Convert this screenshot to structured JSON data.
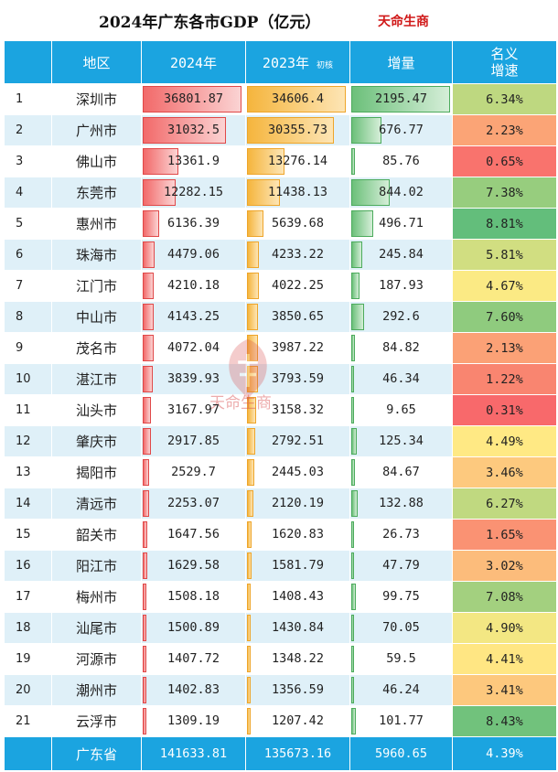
{
  "title": "2024年广东各市GDP（亿元）",
  "brand": "天命生商",
  "headers": {
    "region": "地区",
    "y2024": "2024年",
    "y2023": "2023年",
    "y2023_note": "初核",
    "increase": "增量",
    "growth_line1": "名义",
    "growth_line2": "增速"
  },
  "rows": [
    {
      "rank": "1",
      "city": "深圳市",
      "gdp2024": "36801.87",
      "gdp2023": "34606.4",
      "increase": "2195.47",
      "growth": "6.34%"
    },
    {
      "rank": "2",
      "city": "广州市",
      "gdp2024": "31032.5",
      "gdp2023": "30355.73",
      "increase": "676.77",
      "growth": "2.23%"
    },
    {
      "rank": "3",
      "city": "佛山市",
      "gdp2024": "13361.9",
      "gdp2023": "13276.14",
      "increase": "85.76",
      "growth": "0.65%"
    },
    {
      "rank": "4",
      "city": "东莞市",
      "gdp2024": "12282.15",
      "gdp2023": "11438.13",
      "increase": "844.02",
      "growth": "7.38%"
    },
    {
      "rank": "5",
      "city": "惠州市",
      "gdp2024": "6136.39",
      "gdp2023": "5639.68",
      "increase": "496.71",
      "growth": "8.81%"
    },
    {
      "rank": "6",
      "city": "珠海市",
      "gdp2024": "4479.06",
      "gdp2023": "4233.22",
      "increase": "245.84",
      "growth": "5.81%"
    },
    {
      "rank": "7",
      "city": "江门市",
      "gdp2024": "4210.18",
      "gdp2023": "4022.25",
      "increase": "187.93",
      "growth": "4.67%"
    },
    {
      "rank": "8",
      "city": "中山市",
      "gdp2024": "4143.25",
      "gdp2023": "3850.65",
      "increase": "292.6",
      "growth": "7.60%"
    },
    {
      "rank": "9",
      "city": "茂名市",
      "gdp2024": "4072.04",
      "gdp2023": "3987.22",
      "increase": "84.82",
      "growth": "2.13%"
    },
    {
      "rank": "10",
      "city": "湛江市",
      "gdp2024": "3839.93",
      "gdp2023": "3793.59",
      "increase": "46.34",
      "growth": "1.22%"
    },
    {
      "rank": "11",
      "city": "汕头市",
      "gdp2024": "3167.97",
      "gdp2023": "3158.32",
      "increase": "9.65",
      "growth": "0.31%"
    },
    {
      "rank": "12",
      "city": "肇庆市",
      "gdp2024": "2917.85",
      "gdp2023": "2792.51",
      "increase": "125.34",
      "growth": "4.49%"
    },
    {
      "rank": "13",
      "city": "揭阳市",
      "gdp2024": "2529.7",
      "gdp2023": "2445.03",
      "increase": "84.67",
      "growth": "3.46%"
    },
    {
      "rank": "14",
      "city": "清远市",
      "gdp2024": "2253.07",
      "gdp2023": "2120.19",
      "increase": "132.88",
      "growth": "6.27%"
    },
    {
      "rank": "15",
      "city": "韶关市",
      "gdp2024": "1647.56",
      "gdp2023": "1620.83",
      "increase": "26.73",
      "growth": "1.65%"
    },
    {
      "rank": "16",
      "city": "阳江市",
      "gdp2024": "1629.58",
      "gdp2023": "1581.79",
      "increase": "47.79",
      "growth": "3.02%"
    },
    {
      "rank": "17",
      "city": "梅州市",
      "gdp2024": "1508.18",
      "gdp2023": "1408.43",
      "increase": "99.75",
      "growth": "7.08%"
    },
    {
      "rank": "18",
      "city": "汕尾市",
      "gdp2024": "1500.89",
      "gdp2023": "1430.84",
      "increase": "70.05",
      "growth": "4.90%"
    },
    {
      "rank": "19",
      "city": "河源市",
      "gdp2024": "1407.72",
      "gdp2023": "1348.22",
      "increase": "59.5",
      "growth": "4.41%"
    },
    {
      "rank": "20",
      "city": "潮州市",
      "gdp2024": "1402.83",
      "gdp2023": "1356.59",
      "increase": "46.24",
      "growth": "3.41%"
    },
    {
      "rank": "21",
      "city": "云浮市",
      "gdp2024": "1309.19",
      "gdp2023": "1207.42",
      "increase": "101.77",
      "growth": "8.43%"
    }
  ],
  "total": {
    "label": "广东省",
    "gdp2024": "141633.81",
    "gdp2023": "135673.16",
    "increase": "5960.65",
    "growth": "4.39%"
  },
  "colors": {
    "header_bg": "#1ba4e0",
    "stripe_bg": "#dff0f8",
    "bar_2024": "#f26a6a",
    "bar_2023": "#f5b53d",
    "bar_increase": "#6cc07a",
    "growth_low": "#f8696b",
    "growth_mid": "#ffeb84",
    "growth_high": "#63be7b",
    "brand": "#d01818"
  },
  "watermark_text": "天命生商"
}
